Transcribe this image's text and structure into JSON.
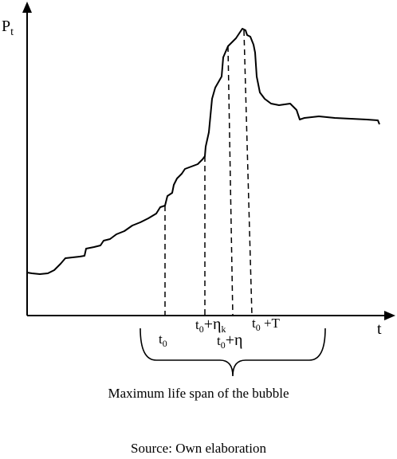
{
  "axes": {
    "y_label": "P",
    "y_label_sub": "t",
    "x_label": "t"
  },
  "markers": {
    "t0": {
      "base": "t",
      "sub": "0",
      "suffix": ""
    },
    "t0_eta_k": {
      "base": "t",
      "sub": "0",
      "mid": "+η",
      "mid_sub": "k"
    },
    "t0_eta": {
      "base": "t",
      "sub": "0",
      "suffix": "+η"
    },
    "t0_T": {
      "base": "t",
      "sub": "0",
      "suffix": " +T"
    }
  },
  "caption": "Maximum life span of the bubble",
  "source": "Source: Own elaboration"
}
